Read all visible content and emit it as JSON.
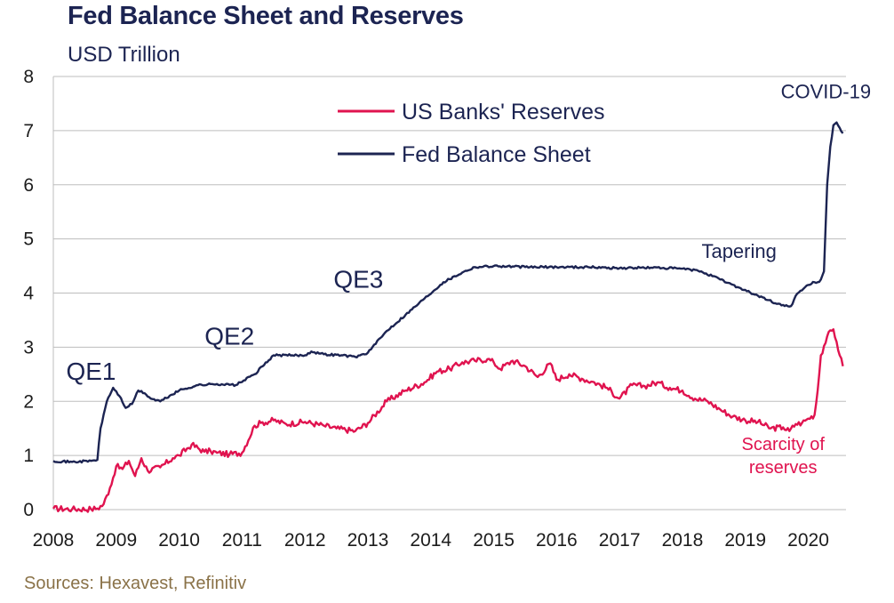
{
  "title": "Fed Balance Sheet and Reserves",
  "subtitle": "USD Trillion",
  "source": "Sources: Hexavest, Refinitiv",
  "colors": {
    "balance": "#1c2452",
    "reserves": "#e0134f",
    "grid": "#bdbdbd"
  },
  "chart_data": {
    "type": "line",
    "title": "Fed Balance Sheet and Reserves",
    "ylabel": "USD Trillion",
    "xlim": [
      2008,
      2020.6
    ],
    "ylim": [
      0,
      8
    ],
    "yticks": [
      0,
      1,
      2,
      3,
      4,
      5,
      6,
      7,
      8
    ],
    "xticks": [
      2008,
      2009,
      2010,
      2011,
      2012,
      2013,
      2014,
      2015,
      2016,
      2017,
      2018,
      2019,
      2020
    ],
    "grid": "horizontal",
    "legend_position": "top-center",
    "series": [
      {
        "name": "US Banks' Reserves",
        "color": "#e0134f",
        "x": [
          2008.0,
          2008.3,
          2008.6,
          2008.7,
          2008.8,
          2008.9,
          2009.0,
          2009.1,
          2009.2,
          2009.3,
          2009.4,
          2009.5,
          2009.7,
          2009.9,
          2010.0,
          2010.2,
          2010.4,
          2010.5,
          2010.6,
          2010.8,
          2011.0,
          2011.2,
          2011.3,
          2011.5,
          2011.7,
          2012.0,
          2012.3,
          2012.5,
          2012.8,
          2013.0,
          2013.3,
          2013.6,
          2013.9,
          2014.1,
          2014.3,
          2014.5,
          2014.7,
          2014.9,
          2015.0,
          2015.1,
          2015.3,
          2015.5,
          2015.7,
          2015.9,
          2016.0,
          2016.2,
          2016.4,
          2016.6,
          2016.8,
          2017.0,
          2017.2,
          2017.4,
          2017.6,
          2017.8,
          2018.0,
          2018.2,
          2018.4,
          2018.6,
          2018.8,
          2019.0,
          2019.2,
          2019.4,
          2019.6,
          2019.7,
          2019.8,
          2019.9,
          2020.0,
          2020.1,
          2020.15,
          2020.2,
          2020.3,
          2020.4,
          2020.45,
          2020.5,
          2020.55
        ],
        "values": [
          0.02,
          0.01,
          0.01,
          0.02,
          0.1,
          0.4,
          0.8,
          0.75,
          0.9,
          0.62,
          0.95,
          0.72,
          0.78,
          0.95,
          1.0,
          1.2,
          1.07,
          1.08,
          1.05,
          1.02,
          1.05,
          1.55,
          1.6,
          1.65,
          1.58,
          1.62,
          1.55,
          1.5,
          1.45,
          1.6,
          2.0,
          2.2,
          2.35,
          2.55,
          2.6,
          2.72,
          2.75,
          2.78,
          2.72,
          2.6,
          2.75,
          2.65,
          2.45,
          2.7,
          2.4,
          2.5,
          2.42,
          2.35,
          2.25,
          2.05,
          2.3,
          2.28,
          2.35,
          2.25,
          2.2,
          2.05,
          2.0,
          1.85,
          1.72,
          1.65,
          1.62,
          1.5,
          1.52,
          1.45,
          1.58,
          1.6,
          1.68,
          1.75,
          2.2,
          2.85,
          3.2,
          3.33,
          3.1,
          2.85,
          2.65
        ]
      },
      {
        "name": "Fed Balance Sheet",
        "color": "#1c2452",
        "x": [
          2008.0,
          2008.3,
          2008.6,
          2008.7,
          2008.75,
          2008.85,
          2008.95,
          2009.05,
          2009.15,
          2009.25,
          2009.35,
          2009.45,
          2009.55,
          2009.7,
          2010.0,
          2010.3,
          2010.6,
          2010.9,
          2011.2,
          2011.5,
          2011.8,
          2012.0,
          2012.1,
          2012.3,
          2012.6,
          2012.8,
          2013.0,
          2013.3,
          2013.6,
          2013.9,
          2014.2,
          2014.5,
          2014.7,
          2015.0,
          2015.5,
          2016.0,
          2016.5,
          2017.0,
          2017.5,
          2018.0,
          2018.3,
          2018.6,
          2018.9,
          2019.2,
          2019.5,
          2019.6,
          2019.7,
          2019.75,
          2019.8,
          2019.9,
          2020.0,
          2020.1,
          2020.15,
          2020.2,
          2020.25,
          2020.3,
          2020.35,
          2020.4,
          2020.45,
          2020.5,
          2020.55
        ],
        "values": [
          0.9,
          0.88,
          0.9,
          0.92,
          1.5,
          2.0,
          2.25,
          2.1,
          1.88,
          1.95,
          2.2,
          2.15,
          2.05,
          2.0,
          2.2,
          2.3,
          2.32,
          2.3,
          2.5,
          2.85,
          2.85,
          2.85,
          2.92,
          2.87,
          2.85,
          2.82,
          2.9,
          3.3,
          3.6,
          3.9,
          4.2,
          4.38,
          4.48,
          4.5,
          4.48,
          4.48,
          4.48,
          4.46,
          4.47,
          4.45,
          4.4,
          4.25,
          4.1,
          3.95,
          3.8,
          3.78,
          3.75,
          3.8,
          3.95,
          4.05,
          4.15,
          4.2,
          4.2,
          4.25,
          4.4,
          6.0,
          6.7,
          7.1,
          7.15,
          7.05,
          6.95
        ]
      }
    ],
    "annotations": [
      {
        "text": "QE1",
        "x": 2008.6,
        "y": 2.4,
        "style": "big"
      },
      {
        "text": "QE2",
        "x": 2010.8,
        "y": 3.05,
        "style": "big"
      },
      {
        "text": "QE3",
        "x": 2012.85,
        "y": 4.1,
        "style": "big"
      },
      {
        "text": "Tapering",
        "x": 2018.9,
        "y": 4.65,
        "style": "normal"
      },
      {
        "text": "COVID-19",
        "x": 2020.28,
        "y": 7.6,
        "style": "normal"
      },
      {
        "text": "Scarcity of",
        "x": 2019.6,
        "y": 1.1,
        "style": "red"
      },
      {
        "text": "reserves",
        "x": 2019.6,
        "y": 0.67,
        "style": "red"
      }
    ]
  }
}
